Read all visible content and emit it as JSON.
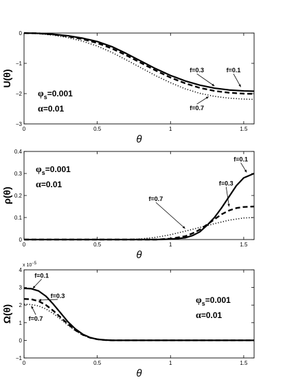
{
  "chart_data": [
    {
      "type": "line",
      "xlabel": "θ",
      "ylabel": "U(θ)",
      "xlim": [
        0,
        1.5708
      ],
      "ylim": [
        -3,
        0
      ],
      "xticks": [
        0,
        0.5,
        1,
        1.5
      ],
      "xtick_labels": [
        "0",
        "0.5",
        "1",
        "1.5"
      ],
      "yticks": [
        0,
        -1,
        -2,
        -3
      ],
      "ytick_labels": [
        "0",
        "−1",
        "−2",
        "−3"
      ],
      "params": [
        {
          "sym": "φ",
          "sub": "s",
          "rest": "=0.001"
        },
        {
          "sym": "α",
          "sub": "",
          "rest": "=0.01"
        }
      ],
      "series": [
        {
          "name": "f=0.1",
          "style": "solid",
          "x": [
            0,
            0.1,
            0.2,
            0.3,
            0.4,
            0.5,
            0.6,
            0.7,
            0.8,
            0.9,
            1.0,
            1.1,
            1.2,
            1.3,
            1.4,
            1.5,
            1.5708
          ],
          "y": [
            0,
            -0.01,
            -0.04,
            -0.09,
            -0.17,
            -0.28,
            -0.45,
            -0.68,
            -0.93,
            -1.18,
            -1.4,
            -1.58,
            -1.72,
            -1.82,
            -1.88,
            -1.91,
            -1.92
          ]
        },
        {
          "name": "f=0.3",
          "style": "dashed",
          "x": [
            0,
            0.1,
            0.2,
            0.3,
            0.4,
            0.5,
            0.6,
            0.7,
            0.8,
            0.9,
            1.0,
            1.1,
            1.2,
            1.3,
            1.4,
            1.5,
            1.5708
          ],
          "y": [
            0,
            -0.01,
            -0.05,
            -0.11,
            -0.2,
            -0.33,
            -0.51,
            -0.74,
            -0.99,
            -1.24,
            -1.47,
            -1.66,
            -1.81,
            -1.91,
            -1.97,
            -2.0,
            -2.01
          ]
        },
        {
          "name": "f=0.7",
          "style": "dotted",
          "x": [
            0,
            0.1,
            0.2,
            0.3,
            0.4,
            0.5,
            0.6,
            0.7,
            0.8,
            0.9,
            1.0,
            1.1,
            1.2,
            1.3,
            1.4,
            1.5,
            1.5708
          ],
          "y": [
            0,
            -0.02,
            -0.07,
            -0.15,
            -0.27,
            -0.43,
            -0.64,
            -0.89,
            -1.15,
            -1.41,
            -1.64,
            -1.84,
            -1.99,
            -2.09,
            -2.15,
            -2.18,
            -2.19
          ]
        }
      ],
      "annotations": [
        {
          "text": "f=0.3",
          "x": 1.18,
          "y": -1.3,
          "ax": 1.3,
          "ay": -1.75
        },
        {
          "text": "f=0.1",
          "x": 1.43,
          "y": -1.3,
          "ax": 1.48,
          "ay": -1.78
        },
        {
          "text": "f=0.7",
          "x": 1.18,
          "y": -2.55,
          "ax": 1.26,
          "ay": -2.1
        }
      ]
    },
    {
      "type": "line",
      "xlabel": "θ",
      "ylabel": "ρ(θ)",
      "xlim": [
        0,
        1.5708
      ],
      "ylim": [
        0,
        0.4
      ],
      "xticks": [
        0,
        0.5,
        1,
        1.5
      ],
      "xtick_labels": [
        "0",
        "0.5",
        "1",
        "1.5"
      ],
      "yticks": [
        0,
        0.1,
        0.2,
        0.3,
        0.4
      ],
      "ytick_labels": [
        "0",
        "0.1",
        "0.2",
        "0.3",
        "0.4"
      ],
      "params": [
        {
          "sym": "φ",
          "sub": "s",
          "rest": "=0.001"
        },
        {
          "sym": "α",
          "sub": "",
          "rest": "=0.01"
        }
      ],
      "series": [
        {
          "name": "f=0.1",
          "style": "solid",
          "x": [
            0,
            0.9,
            1.0,
            1.1,
            1.15,
            1.2,
            1.25,
            1.3,
            1.35,
            1.4,
            1.45,
            1.5,
            1.5708
          ],
          "y": [
            0,
            0,
            0.002,
            0.008,
            0.018,
            0.035,
            0.065,
            0.1,
            0.145,
            0.195,
            0.245,
            0.28,
            0.3
          ]
        },
        {
          "name": "f=0.3",
          "style": "dashed",
          "x": [
            0,
            0.9,
            1.0,
            1.1,
            1.15,
            1.2,
            1.25,
            1.3,
            1.35,
            1.4,
            1.45,
            1.5,
            1.5708
          ],
          "y": [
            0,
            0,
            0.004,
            0.015,
            0.028,
            0.045,
            0.068,
            0.092,
            0.115,
            0.132,
            0.143,
            0.148,
            0.15
          ]
        },
        {
          "name": "f=0.7",
          "style": "dotted",
          "x": [
            0,
            0.7,
            0.8,
            0.9,
            1.0,
            1.1,
            1.2,
            1.3,
            1.4,
            1.5,
            1.5708
          ],
          "y": [
            0,
            0,
            0.003,
            0.01,
            0.022,
            0.038,
            0.055,
            0.072,
            0.088,
            0.098,
            0.1
          ]
        }
      ],
      "annotations": [
        {
          "text": "f=0.1",
          "x": 1.48,
          "y": 0.355,
          "ax": 1.52,
          "ay": 0.305
        },
        {
          "text": "f=0.3",
          "x": 1.38,
          "y": 0.245,
          "ax": 1.4,
          "ay": 0.15
        },
        {
          "text": "f=0.7",
          "x": 0.9,
          "y": 0.175,
          "ax": 1.1,
          "ay": 0.05
        }
      ]
    },
    {
      "type": "line",
      "xlabel": "θ",
      "ylabel": "Ω(θ)",
      "scale_label": "x 10",
      "scale_exp": "−5",
      "xlim": [
        0,
        1.5708
      ],
      "ylim": [
        -1,
        4
      ],
      "xticks": [
        0,
        0.5,
        1,
        1.5
      ],
      "xtick_labels": [
        "0",
        "0.5",
        "1",
        "1.5"
      ],
      "yticks": [
        -1,
        0,
        1,
        2,
        3,
        4
      ],
      "ytick_labels": [
        "−1",
        "0",
        "1",
        "2",
        "3",
        "4"
      ],
      "params": [
        {
          "sym": "φ",
          "sub": "s",
          "rest": "=0.001"
        },
        {
          "sym": "α",
          "sub": "",
          "rest": "=0.01"
        }
      ],
      "series": [
        {
          "name": "f=0.1",
          "style": "solid",
          "x": [
            0,
            0.05,
            0.1,
            0.15,
            0.2,
            0.25,
            0.3,
            0.35,
            0.4,
            0.45,
            0.5,
            0.55,
            0.6,
            1.5708
          ],
          "y": [
            2.95,
            2.93,
            2.8,
            2.5,
            2.05,
            1.55,
            1.05,
            0.65,
            0.35,
            0.16,
            0.06,
            0.02,
            0,
            0
          ]
        },
        {
          "name": "f=0.3",
          "style": "dashed",
          "x": [
            0,
            0.05,
            0.1,
            0.15,
            0.2,
            0.25,
            0.3,
            0.35,
            0.4,
            0.45,
            0.5,
            0.55,
            0.6,
            1.5708
          ],
          "y": [
            2.35,
            2.33,
            2.22,
            2.0,
            1.68,
            1.3,
            0.92,
            0.58,
            0.32,
            0.15,
            0.06,
            0.02,
            0,
            0
          ]
        },
        {
          "name": "f=0.7",
          "style": "dotted",
          "x": [
            0,
            0.05,
            0.1,
            0.15,
            0.2,
            0.25,
            0.3,
            0.35,
            0.4,
            0.45,
            0.5,
            0.55,
            0.6,
            1.5708
          ],
          "y": [
            2.05,
            2.03,
            1.95,
            1.78,
            1.52,
            1.2,
            0.86,
            0.55,
            0.3,
            0.14,
            0.05,
            0.02,
            0,
            0
          ]
        }
      ],
      "annotations": [
        {
          "text": "f=0.1",
          "x": 0.12,
          "y": 3.55,
          "ax": 0.06,
          "ay": 2.95
        },
        {
          "text": "f=0.3",
          "x": 0.23,
          "y": 2.4,
          "ax": 0.1,
          "ay": 2.28
        },
        {
          "text": "f=0.7",
          "x": 0.08,
          "y": 1.1,
          "ax": 0.05,
          "ay": 1.95
        }
      ]
    }
  ]
}
